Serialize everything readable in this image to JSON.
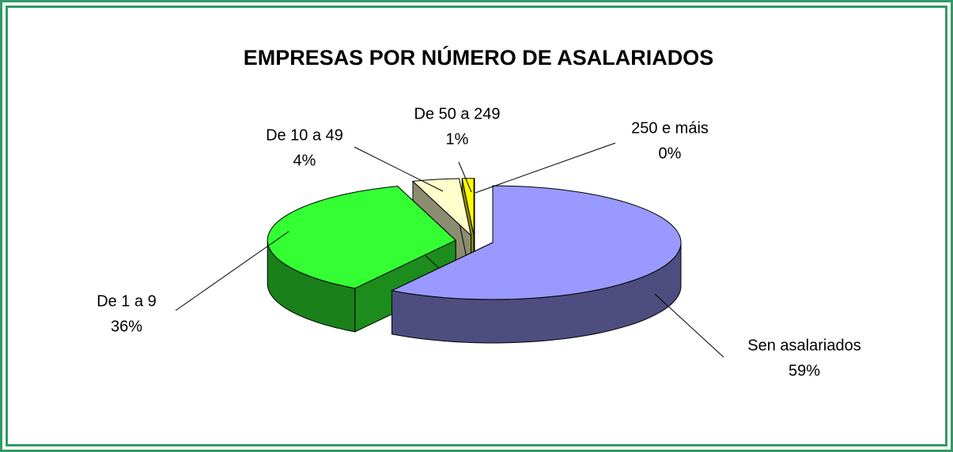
{
  "chart_data": {
    "type": "pie3d",
    "title": "EMPRESAS POR NÚMERO DE ASALARIADOS",
    "categories": [
      "Sen asalariados",
      "De 1 a 9",
      "De 10 a 49",
      "De 50 a 249",
      "250 e máis"
    ],
    "values": [
      59,
      36,
      4,
      1,
      0
    ],
    "value_labels": [
      "59%",
      "36%",
      "4%",
      "1%",
      "0%"
    ],
    "colors": [
      "#9999ff",
      "#33ff33",
      "#ffffcc",
      "#ffff00",
      "#000080"
    ]
  }
}
